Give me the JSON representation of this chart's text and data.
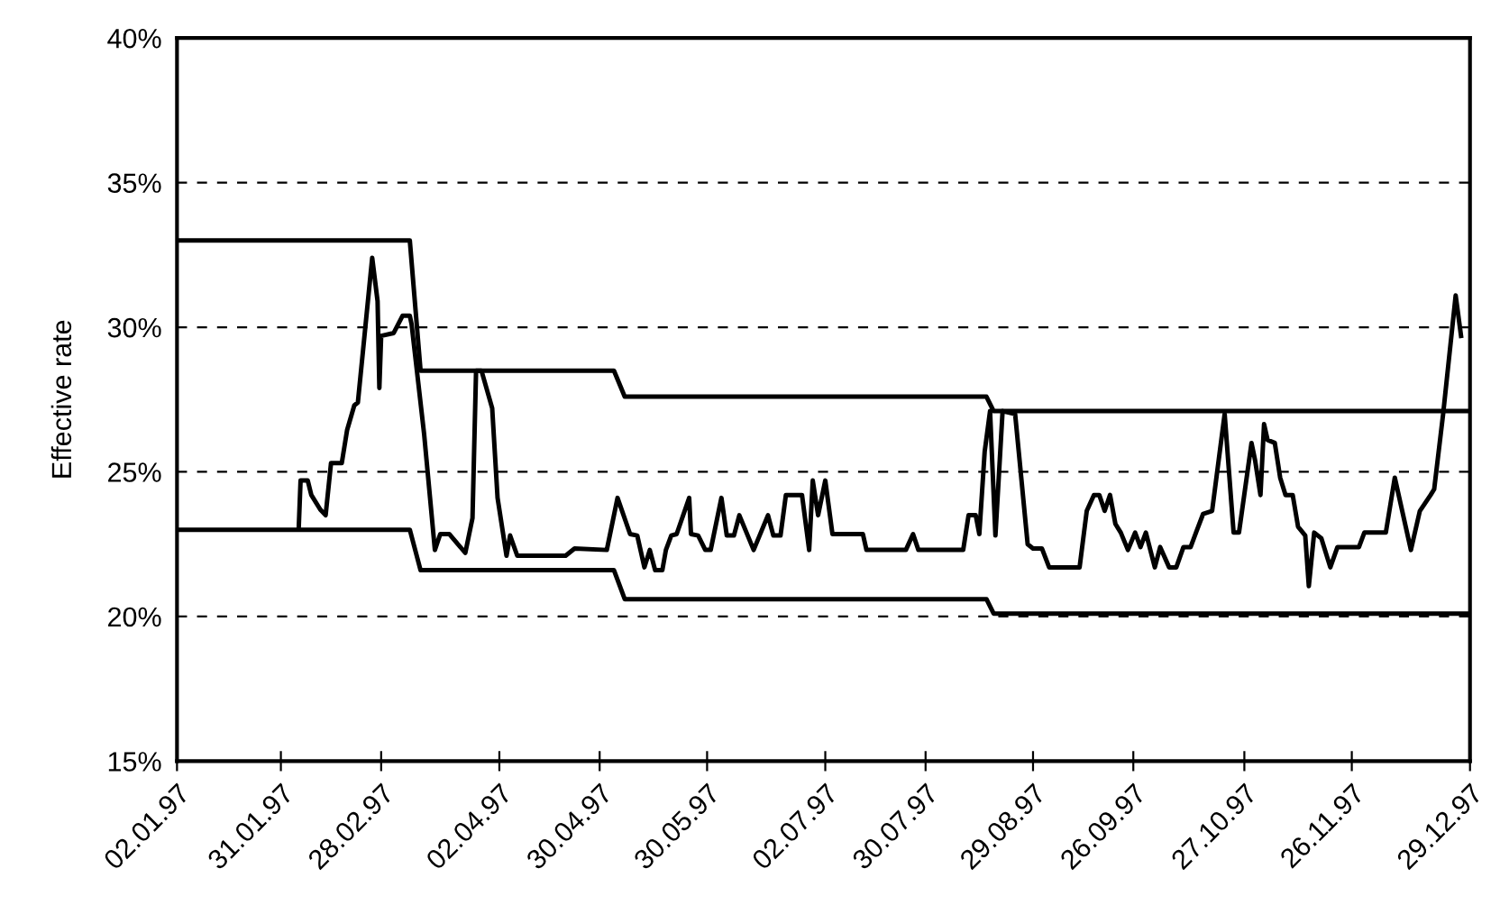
{
  "chart_data": {
    "type": "line",
    "ylabel": "Effective rate",
    "ylim": [
      15,
      40
    ],
    "yticks": [
      {
        "value": 15,
        "label": "15%"
      },
      {
        "value": 20,
        "label": "20%"
      },
      {
        "value": 25,
        "label": "25%"
      },
      {
        "value": 30,
        "label": "30%"
      },
      {
        "value": 35,
        "label": "35%"
      },
      {
        "value": 40,
        "label": "40%"
      }
    ],
    "xlim": [
      "1997-01-02",
      "1997-12-29"
    ],
    "xticks": [
      {
        "value": "1997-01-02",
        "label": "02.01.97"
      },
      {
        "value": "1997-01-31",
        "label": "31.01.97"
      },
      {
        "value": "1997-02-28",
        "label": "28.02.97"
      },
      {
        "value": "1997-04-02",
        "label": "02.04.97"
      },
      {
        "value": "1997-04-30",
        "label": "30.04.97"
      },
      {
        "value": "1997-05-30",
        "label": "30.05.97"
      },
      {
        "value": "1997-07-02",
        "label": "02.07.97"
      },
      {
        "value": "1997-07-30",
        "label": "30.07.97"
      },
      {
        "value": "1997-08-29",
        "label": "29.08.97"
      },
      {
        "value": "1997-09-26",
        "label": "26.09.97"
      },
      {
        "value": "1997-10-27",
        "label": "27.10.97"
      },
      {
        "value": "1997-11-26",
        "label": "26.11.97"
      },
      {
        "value": "1997-12-29",
        "label": "29.12.97"
      }
    ],
    "grid": "y",
    "line_style": "solid",
    "marker": "none",
    "series": [
      {
        "color": "#000000",
        "x": [
          "1997-01-02",
          "1997-03-08",
          "1997-03-11",
          "1997-05-04",
          "1997-05-07",
          "1997-08-16",
          "1997-08-18",
          "1997-12-29"
        ],
        "values": [
          33,
          33,
          28.5,
          28.5,
          27.6,
          27.6,
          27.1,
          27.1
        ]
      },
      {
        "color": "#000000",
        "x": [
          "1997-01-02",
          "1997-03-08",
          "1997-03-11",
          "1997-05-04",
          "1997-05-07",
          "1997-08-16",
          "1997-08-18",
          "1997-12-29"
        ],
        "values": [
          23,
          23,
          21.6,
          21.6,
          20.6,
          20.6,
          20.1,
          20.1
        ]
      },
      {
        "color": "#000000",
        "x": [
          "1997-02-05",
          "1997-02-05T12:00",
          "1997-02-07T12:00",
          "1997-02-08T12:00",
          "1997-02-11",
          "1997-02-12T12:00",
          "1997-02-14",
          "1997-02-17",
          "1997-02-18T12:00",
          "1997-02-20T12:00",
          "1997-02-21T12:00",
          "1997-02-23T12:00",
          "1997-02-25T12:00",
          "1997-02-27",
          "1997-02-27T12:00",
          "1997-02-28",
          "1997-03-03T12:00",
          "1997-03-06",
          "1997-03-08",
          "1997-03-08T12:00",
          "1997-03-12",
          "1997-03-15",
          "1997-03-16T12:00",
          "1997-03-19",
          "1997-03-23T12:00",
          "1997-03-25T12:00",
          "1997-03-26T12:00",
          "1997-03-28",
          "1997-03-31",
          "1997-04-01T12:00",
          "1997-04-04",
          "1997-04-05",
          "1997-04-07",
          "1997-04-20T12:00",
          "1997-04-23",
          "1997-05-02",
          "1997-05-05",
          "1997-05-08T12:00",
          "1997-05-10T12:00",
          "1997-05-12T12:00",
          "1997-05-14",
          "1997-05-15T12:00",
          "1997-05-17T12:00",
          "1997-05-18T12:00",
          "1997-05-20",
          "1997-05-21T12:00",
          "1997-05-25",
          "1997-05-25T12:00",
          "1997-05-27T12:00",
          "1997-05-29T12:00",
          "1997-05-31",
          "1997-06-03",
          "1997-06-04T12:00",
          "1997-06-06T12:00",
          "1997-06-08",
          "1997-06-12",
          "1997-06-16",
          "1997-06-17T12:00",
          "1997-06-19T12:00",
          "1997-06-21",
          "1997-06-25T12:00",
          "1997-06-27T12:00",
          "1997-06-28T12:00",
          "1997-06-30",
          "1997-07-02",
          "1997-07-04",
          "1997-07-12T12:00",
          "1997-07-13T12:00",
          "1997-07-24T12:00",
          "1997-07-26T12:00",
          "1997-07-28",
          "1997-08-09T12:00",
          "1997-08-11",
          "1997-08-13",
          "1997-08-14",
          "1997-08-15T12:00",
          "1997-08-17",
          "1997-08-18T12:00",
          "1997-08-20T12:00",
          "1997-08-24",
          "1997-08-27T12:00",
          "1997-08-29",
          "1997-08-31T12:00",
          "1997-09-02T12:00",
          "1997-09-11",
          "1997-09-13",
          "1997-09-15",
          "1997-09-16T12:00",
          "1997-09-18",
          "1997-09-19T12:00",
          "1997-09-21",
          "1997-09-22T12:00",
          "1997-09-24T12:00",
          "1997-09-26T12:00",
          "1997-09-28",
          "1997-09-29T12:00",
          "1997-10-02",
          "1997-10-03T12:00",
          "1997-10-06",
          "1997-10-08",
          "1997-10-10",
          "1997-10-12",
          "1997-10-13T12:00",
          "1997-10-15T12:00",
          "1997-10-18",
          "1997-10-21T12:00",
          "1997-10-24",
          "1997-10-25T12:00",
          "1997-10-29",
          "1997-10-30",
          "1997-10-31T12:00",
          "1997-11-01T12:00",
          "1997-11-02T12:00",
          "1997-11-04T12:00",
          "1997-11-06",
          "1997-11-07T12:00",
          "1997-11-09T12:00",
          "1997-11-11",
          "1997-11-13",
          "1997-11-14",
          "1997-11-15T12:00",
          "1997-11-17T12:00",
          "1997-11-20",
          "1997-11-22",
          "1997-11-28",
          "1997-11-29T12:00",
          "1997-12-05T12:00",
          "1997-12-08",
          "1997-12-12T12:00",
          "1997-12-15",
          "1997-12-18",
          "1997-12-19",
          "1997-12-21T12:00",
          "1997-12-25",
          "1997-12-26T12:00"
        ],
        "values": [
          23.1,
          24.7,
          24.7,
          24.2,
          23.7,
          23.5,
          25.3,
          25.3,
          26.45,
          27.3,
          27.4,
          29.9,
          32.4,
          30.9,
          27.9,
          29.7,
          29.8,
          30.4,
          30.4,
          30.1,
          26.3,
          22.3,
          22.85,
          22.85,
          22.2,
          23.4,
          28.5,
          28.5,
          27.2,
          24.1,
          22.1,
          22.8,
          22.1,
          22.1,
          22.35,
          22.3,
          24.1,
          22.85,
          22.8,
          21.7,
          22.3,
          21.6,
          21.6,
          22.3,
          22.8,
          22.85,
          24.1,
          22.85,
          22.8,
          22.3,
          22.3,
          24.1,
          22.8,
          22.8,
          23.5,
          22.3,
          23.5,
          22.8,
          22.8,
          24.2,
          24.2,
          22.3,
          24.7,
          23.5,
          24.7,
          22.85,
          22.85,
          22.3,
          22.3,
          22.85,
          22.3,
          22.3,
          23.5,
          23.5,
          22.85,
          25.7,
          27.1,
          22.8,
          27.1,
          27.0,
          22.5,
          22.35,
          22.35,
          21.7,
          21.7,
          23.65,
          24.2,
          24.2,
          23.65,
          24.2,
          23.2,
          22.9,
          22.3,
          22.9,
          22.4,
          22.9,
          21.7,
          22.4,
          21.7,
          21.7,
          22.4,
          22.4,
          22.9,
          23.55,
          23.65,
          27.0,
          22.9,
          22.9,
          26.0,
          25.4,
          24.2,
          26.65,
          26.1,
          26.0,
          24.8,
          24.2,
          24.2,
          23.1,
          22.8,
          21.05,
          22.9,
          22.7,
          21.7,
          22.4,
          22.4,
          22.9,
          22.9,
          24.8,
          22.3,
          23.65,
          24.2,
          24.4,
          27.0,
          31.1,
          29.7
        ]
      }
    ]
  }
}
